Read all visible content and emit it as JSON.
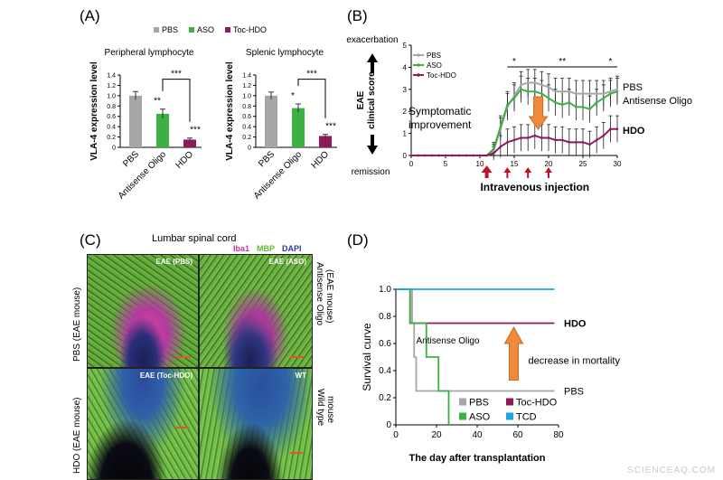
{
  "panels": {
    "A": {
      "letter": "(A)",
      "legend": [
        {
          "name": "PBS",
          "color": "#a6a6a6"
        },
        {
          "name": "ASO",
          "color": "#3cb043"
        },
        {
          "name": "Toc-HDO",
          "color": "#8e1a5e"
        }
      ]
    },
    "B": {
      "letter": "(B)"
    },
    "C": {
      "letter": "(C)"
    },
    "D": {
      "letter": "(D)"
    }
  },
  "chart_data": [
    {
      "id": "A-peripheral",
      "type": "bar",
      "title": "Peripheral lymphocyte",
      "ylabel": "VLA-4 expression level",
      "categories": [
        "PBS",
        "Antisense Oligo",
        "HDO"
      ],
      "values": [
        1.0,
        0.65,
        0.15
      ],
      "errors": [
        0.08,
        0.09,
        0.03
      ],
      "colors": [
        "#a6a6a6",
        "#3cb043",
        "#8e1a5e"
      ],
      "ylim": [
        0,
        1.4
      ],
      "yticks": [
        "0",
        "0.2",
        "0.4",
        "0.6",
        "0.8",
        "1.0",
        "1.2",
        "1.4"
      ],
      "significance": [
        "**",
        "***",
        "***"
      ]
    },
    {
      "id": "A-splenic",
      "type": "bar",
      "title": "Splenic lymphocyte",
      "ylabel": "VLA-4 expression level",
      "categories": [
        "PBS",
        "Antisense Oligo",
        "HDO"
      ],
      "values": [
        1.0,
        0.76,
        0.22
      ],
      "errors": [
        0.07,
        0.08,
        0.03
      ],
      "colors": [
        "#a6a6a6",
        "#3cb043",
        "#8e1a5e"
      ],
      "ylim": [
        0,
        1.4
      ],
      "yticks": [
        "0",
        "0.2",
        "0.4",
        "0.6",
        "0.8",
        "1.0",
        "1.2",
        "1.4"
      ],
      "significance": [
        "*",
        "***",
        "***"
      ]
    },
    {
      "id": "B",
      "type": "line",
      "ylabel_top": "EAE",
      "ylabel_bottom": "clinical score",
      "top_label": "exacerbation",
      "bottom_label": "remission",
      "xlim": [
        0,
        30
      ],
      "ylim": [
        0,
        5
      ],
      "xticks": [
        "0",
        "5",
        "10",
        "15",
        "20",
        "25",
        "30"
      ],
      "yticks": [
        "0",
        "1",
        "2",
        "3",
        "4",
        "5"
      ],
      "x": [
        0,
        1,
        2,
        3,
        4,
        5,
        6,
        7,
        8,
        9,
        10,
        11,
        12,
        13,
        14,
        15,
        16,
        17,
        18,
        19,
        20,
        21,
        22,
        23,
        24,
        25,
        26,
        27,
        28,
        29,
        30
      ],
      "series": [
        {
          "name": "PBS",
          "color": "#a6a6a6",
          "values": [
            0,
            0,
            0,
            0,
            0,
            0,
            0,
            0,
            0,
            0,
            0,
            0,
            0.2,
            1.2,
            2.2,
            2.7,
            3.2,
            3.3,
            3.3,
            3.2,
            3.1,
            2.9,
            2.9,
            2.9,
            2.8,
            2.8,
            2.8,
            2.8,
            2.8,
            2.9,
            3.0
          ]
        },
        {
          "name": "ASO",
          "color": "#3cb043",
          "values": [
            0,
            0,
            0,
            0,
            0,
            0,
            0,
            0,
            0,
            0,
            0,
            0,
            0.3,
            1.3,
            2.3,
            2.6,
            3.0,
            2.9,
            2.9,
            2.8,
            2.6,
            2.4,
            2.3,
            2.4,
            2.2,
            2.2,
            2.1,
            2.4,
            2.6,
            2.8,
            2.9
          ]
        },
        {
          "name": "Toc-HDO",
          "color": "#8e1a5e",
          "values": [
            0,
            0,
            0,
            0,
            0,
            0,
            0,
            0,
            0,
            0,
            0,
            0,
            0.1,
            0.4,
            0.6,
            0.7,
            0.8,
            0.8,
            0.9,
            0.8,
            0.8,
            0.7,
            0.7,
            0.6,
            0.6,
            0.6,
            0.5,
            0.7,
            0.9,
            1.2,
            1.2
          ]
        }
      ],
      "errors": [
        0.2,
        0.2,
        0.2,
        0.2,
        0.2,
        0.2,
        0.2,
        0.2,
        0.2,
        0.2,
        0.2,
        0.2,
        0.3,
        0.5,
        0.6,
        0.6,
        0.6,
        0.6,
        0.6,
        0.6,
        0.6,
        0.6,
        0.6,
        0.6,
        0.6,
        0.6,
        0.6,
        0.6,
        0.6,
        0.6,
        0.6
      ],
      "end_labels": [
        "PBS",
        "Antisense Oligo",
        "HDO"
      ],
      "significance": [
        {
          "from": 14,
          "to": 16,
          "text": "*"
        },
        {
          "from": 16,
          "to": 28,
          "text": "**"
        },
        {
          "from": 28,
          "to": 30,
          "text": "*"
        }
      ],
      "annotation": [
        "Symptomatic",
        "improvement"
      ],
      "injection_label": "Intravenous injection",
      "injection_days": [
        11,
        14,
        17,
        20
      ]
    },
    {
      "id": "D",
      "type": "line",
      "ylabel": "Survival curve",
      "xlabel": "The day after transplantation",
      "xlim": [
        0,
        80
      ],
      "ylim": [
        0,
        1.0
      ],
      "xticks": [
        "0",
        "20",
        "40",
        "60",
        "80"
      ],
      "yticks": [
        "0",
        "0.2",
        "0.4",
        "0.6",
        "0.8",
        "1.0"
      ],
      "series": [
        {
          "name": "PBS",
          "color": "#a6a6a6",
          "steps": [
            [
              0,
              1.0
            ],
            [
              8,
              1.0
            ],
            [
              8,
              0.75
            ],
            [
              9,
              0.75
            ],
            [
              9,
              0.5
            ],
            [
              10,
              0.5
            ],
            [
              10,
              0.25
            ],
            [
              78,
              0.25
            ]
          ]
        },
        {
          "name": "Toc-HDO",
          "color": "#8e1a5e",
          "steps": [
            [
              0,
              1.0
            ],
            [
              7,
              1.0
            ],
            [
              7,
              0.75
            ],
            [
              78,
              0.75
            ]
          ]
        },
        {
          "name": "ASO",
          "color": "#3cb043",
          "steps": [
            [
              0,
              1.0
            ],
            [
              7,
              1.0
            ],
            [
              7,
              0.75
            ],
            [
              15,
              0.75
            ],
            [
              15,
              0.5
            ],
            [
              21,
              0.5
            ],
            [
              21,
              0.25
            ],
            [
              26,
              0.25
            ],
            [
              26,
              0.0
            ]
          ]
        },
        {
          "name": "TCD",
          "color": "#1fa6dc",
          "steps": [
            [
              0,
              1.0
            ],
            [
              78,
              1.0
            ]
          ]
        }
      ],
      "end_labels": [
        "HDO",
        "PBS"
      ],
      "annotation_series": "Antisense Oligo",
      "arrow_label": "decrease in mortality",
      "legend": [
        "PBS",
        "Toc-HDO",
        "ASO",
        "TCD"
      ]
    }
  ],
  "microscopy": {
    "title": "Lumbar spinal cord",
    "stains": [
      {
        "name": "Iba1",
        "color": "#c8379a"
      },
      {
        "name": "MBP",
        "color": "#62b83a"
      },
      {
        "name": "DAPI",
        "color": "#2c3b9a"
      }
    ],
    "tiles": [
      "EAE (PBS)",
      "EAE (ASO)",
      "EAE (Toc-HDO)",
      "WT"
    ],
    "row_labels": [
      "PBS (EAE mouse)",
      "HDO (EAE mouse)"
    ],
    "right_labels": [
      "Antisense Oligo",
      "(EAE mouse)",
      "Wild type",
      "mouse"
    ]
  },
  "watermark": "SCIENCEAQ.COM"
}
